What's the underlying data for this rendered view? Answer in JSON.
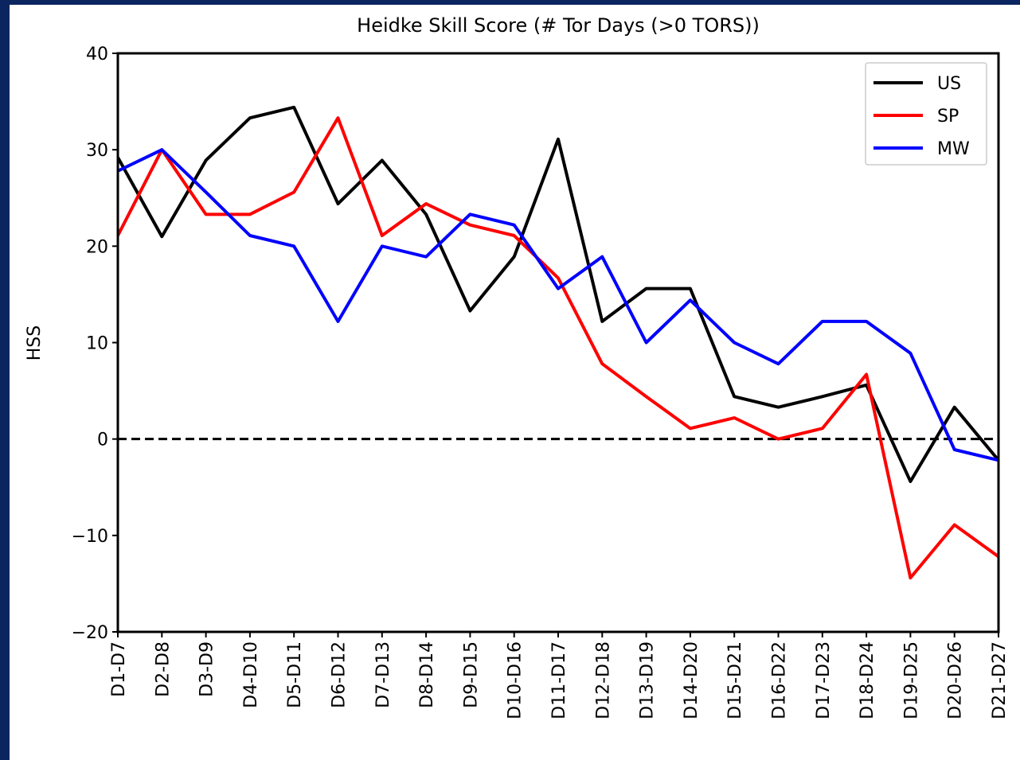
{
  "chart_data": {
    "type": "line",
    "title": "Heidke Skill Score (# Tor Days (>0 TORS))",
    "ylabel": "HSS",
    "categories": [
      "D1-D7",
      "D2-D8",
      "D3-D9",
      "D4-D10",
      "D5-D11",
      "D6-D12",
      "D7-D13",
      "D8-D14",
      "D9-D15",
      "D10-D16",
      "D11-D17",
      "D12-D18",
      "D13-D19",
      "D14-D20",
      "D15-D21",
      "D16-D22",
      "D17-D23",
      "D18-D24",
      "D19-D25",
      "D20-D26",
      "D21-D27"
    ],
    "series": [
      {
        "name": "US",
        "color": "#000000",
        "values": [
          29.2,
          21.0,
          28.9,
          33.3,
          34.4,
          24.4,
          28.9,
          23.3,
          13.3,
          18.9,
          31.1,
          12.2,
          15.6,
          15.6,
          4.4,
          3.3,
          4.4,
          5.6,
          -4.4,
          3.3,
          -2.2
        ]
      },
      {
        "name": "SP",
        "color": "#ff0000",
        "values": [
          21.1,
          30.0,
          23.3,
          23.3,
          25.6,
          33.3,
          21.1,
          24.4,
          22.2,
          21.1,
          16.7,
          7.8,
          4.4,
          1.1,
          2.2,
          0,
          1.1,
          6.7,
          -14.4,
          -8.9,
          -12.2
        ]
      },
      {
        "name": "MW",
        "color": "#0000ff",
        "values": [
          27.8,
          30.0,
          25.6,
          21.1,
          20.0,
          12.2,
          20.0,
          18.9,
          23.3,
          22.2,
          15.6,
          18.9,
          10.0,
          14.4,
          10.0,
          7.8,
          12.2,
          12.2,
          8.9,
          -1.1,
          -2.2
        ]
      }
    ],
    "reference_line": 0,
    "ylim": [
      -20,
      40
    ],
    "yticks": [
      {
        "value": -20,
        "label": "−20"
      },
      {
        "value": -10,
        "label": "−10"
      },
      0,
      10,
      20,
      30,
      40
    ],
    "grid": false,
    "legend": "upper right"
  }
}
